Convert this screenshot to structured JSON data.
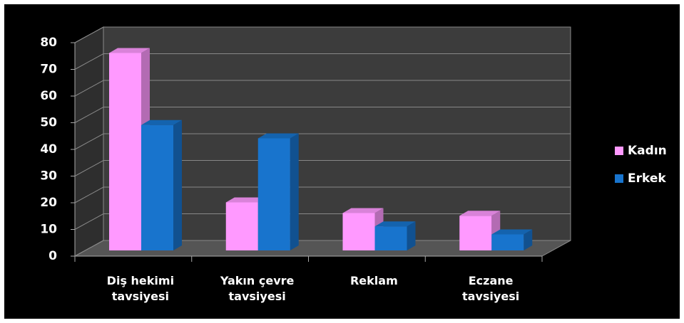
{
  "chart_data": {
    "type": "bar3d",
    "categories": [
      "Diş hekimi tavsiyesi",
      "Yakın çevre tavsiyesi",
      "Reklam",
      "Eczane tavsiyesi"
    ],
    "series": [
      {
        "name": "Kadın",
        "color": "#ff99ff",
        "values": [
          74,
          18,
          14,
          13
        ]
      },
      {
        "name": "Erkek",
        "color": "#1874cd",
        "values": [
          47,
          42,
          9,
          6
        ]
      }
    ],
    "ylim": [
      0,
      80
    ],
    "yticks": [
      0,
      10,
      20,
      30,
      40,
      50,
      60,
      70,
      80
    ],
    "grid": true,
    "legend": "right"
  }
}
